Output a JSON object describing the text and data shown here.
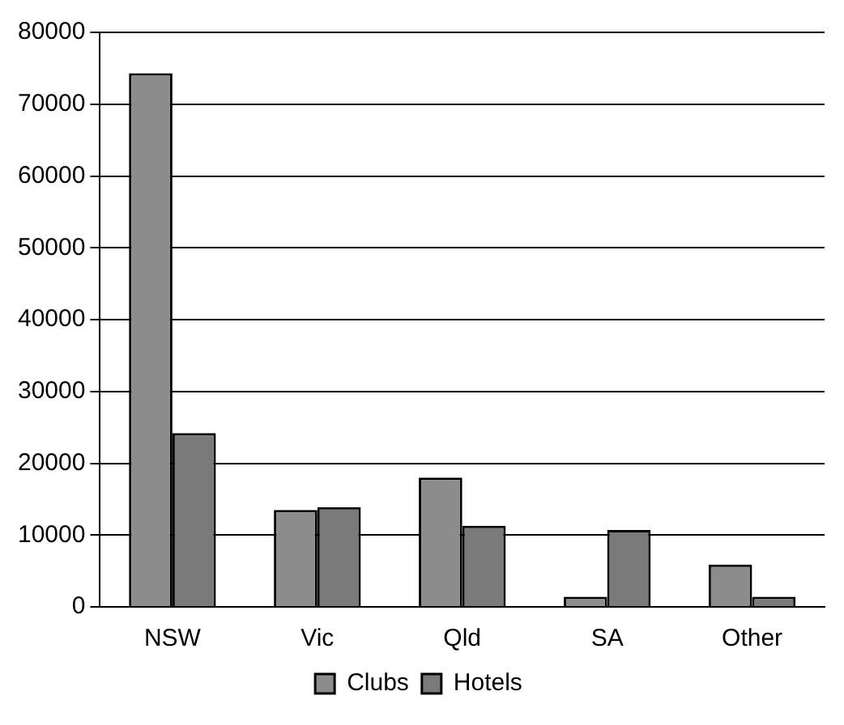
{
  "chart_data": {
    "type": "bar",
    "categories": [
      "NSW",
      "Vic",
      "Qld",
      "SA",
      "Other"
    ],
    "series": [
      {
        "name": "Clubs",
        "color": "#8c8c8c",
        "values": [
          74300,
          13500,
          18000,
          1400,
          5900
        ]
      },
      {
        "name": "Hotels",
        "color": "#7a7a7a",
        "values": [
          24200,
          13900,
          11300,
          10700,
          1400
        ]
      }
    ],
    "ylim": [
      0,
      80000
    ],
    "yticks": [
      0,
      10000,
      20000,
      30000,
      40000,
      50000,
      60000,
      70000,
      80000
    ],
    "grid": "y",
    "legend": "bottom"
  }
}
